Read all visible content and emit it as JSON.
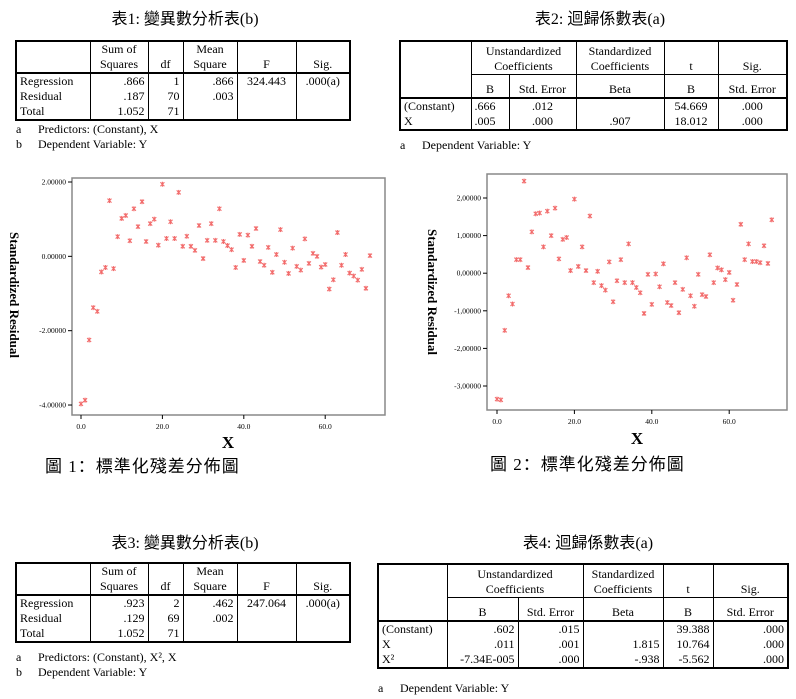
{
  "table1": {
    "title": "表1:  變異數分析表(b)",
    "headers": [
      "",
      "Sum of\nSquares",
      "df",
      "Mean\nSquare",
      "F",
      "Sig."
    ],
    "rows": [
      [
        "Regression",
        ".866",
        "1",
        ".866",
        "324.443",
        ".000(a)"
      ],
      [
        "Residual",
        ".187",
        "70",
        ".003",
        "",
        ""
      ],
      [
        "Total",
        "1.052",
        "71",
        "",
        "",
        ""
      ]
    ],
    "notes": [
      [
        "a",
        "Predictors: (Constant), X"
      ],
      [
        "b",
        "Dependent Variable: Y"
      ]
    ]
  },
  "table2": {
    "title": "表2:  迴歸係數表(a)",
    "group_headers": [
      "Unstandardized\nCoefficients",
      "Standardized\nCoefficients",
      "t",
      "Sig."
    ],
    "sub_headers": [
      "B",
      "Std. Error",
      "Beta",
      "B",
      "Std. Error"
    ],
    "rows": [
      [
        "(Constant)",
        ".666",
        ".012",
        "",
        "54.669",
        ".000"
      ],
      [
        "X",
        ".005",
        ".000",
        ".907",
        "18.012",
        ".000"
      ]
    ],
    "notes": [
      [
        "a",
        "Dependent Variable: Y"
      ]
    ]
  },
  "table3": {
    "title": "表3:  變異數分析表(b)",
    "headers": [
      "",
      "Sum of\nSquares",
      "df",
      "Mean\nSquare",
      "F",
      "Sig."
    ],
    "rows": [
      [
        "Regression",
        ".923",
        "2",
        ".462",
        "247.064",
        ".000(a)"
      ],
      [
        "Residual",
        ".129",
        "69",
        ".002",
        "",
        ""
      ],
      [
        "Total",
        "1.052",
        "71",
        "",
        "",
        ""
      ]
    ],
    "notes": [
      [
        "a",
        "Predictors: (Constant), X², X"
      ],
      [
        "b",
        "Dependent Variable: Y"
      ]
    ]
  },
  "table4": {
    "title": "表4:  迴歸係數表(a)",
    "group_headers": [
      "Unstandardized\nCoefficients",
      "Standardized\nCoefficients",
      "t",
      "Sig."
    ],
    "sub_headers": [
      "B",
      "Std. Error",
      "Beta",
      "B",
      "Std. Error"
    ],
    "rows": [
      [
        "(Constant)",
        ".602",
        ".015",
        "",
        "39.388",
        ".000"
      ],
      [
        "X",
        ".011",
        ".001",
        "1.815",
        "10.764",
        ".000"
      ],
      [
        "X²",
        "-7.34E-005",
        ".000",
        "-.938",
        "-5.562",
        ".000"
      ]
    ],
    "notes": [
      [
        "a",
        "Dependent Variable: Y"
      ]
    ]
  },
  "chart_data": [
    {
      "type": "scatter",
      "caption": "圖 1：標準化殘差分佈圖",
      "xlabel": "X",
      "ylabel": "Standardized Residual",
      "xlim": [
        -2,
        72
      ],
      "ylim": [
        -4.1,
        2.1
      ],
      "xticks": [
        0,
        20,
        40,
        60
      ],
      "xtick_labels": [
        "0.0",
        "20.0",
        "40.0",
        "60.0"
      ],
      "yticks": [
        2,
        0,
        -2,
        -4
      ],
      "ytick_labels": [
        "2.00000",
        "0.00000",
        "-2.00000",
        "-4.00000"
      ],
      "grid": false,
      "marker_color": "#f26b6b",
      "x": [
        0,
        1,
        2,
        3,
        4,
        5,
        6,
        7,
        8,
        9,
        10,
        11,
        12,
        13,
        14,
        15,
        16,
        17,
        18,
        19,
        20,
        21,
        22,
        23,
        24,
        25,
        26,
        27,
        28,
        29,
        30,
        31,
        32,
        33,
        34,
        35,
        36,
        37,
        38,
        39,
        40,
        41,
        42,
        43,
        44,
        45,
        46,
        47,
        48,
        49,
        50,
        51,
        52,
        53,
        54,
        55,
        56,
        57,
        58,
        59,
        60,
        61,
        62,
        63,
        64,
        65,
        66,
        67,
        68,
        69,
        70,
        71
      ],
      "y": [
        -3.97,
        -3.87,
        -2.25,
        -1.38,
        -1.48,
        -0.42,
        -0.3,
        1.5,
        -0.33,
        0.53,
        1.02,
        1.1,
        0.42,
        1.28,
        0.8,
        1.47,
        0.4,
        0.88,
        1.0,
        0.3,
        1.94,
        0.48,
        0.93,
        0.48,
        1.72,
        0.27,
        0.54,
        0.27,
        0.16,
        0.83,
        -0.06,
        0.43,
        0.88,
        0.43,
        1.28,
        0.4,
        0.29,
        0.18,
        -0.3,
        0.59,
        -0.11,
        0.57,
        0.27,
        0.75,
        -0.14,
        -0.24,
        0.24,
        -0.43,
        0.05,
        0.72,
        -0.16,
        -0.46,
        0.22,
        -0.27,
        -0.37,
        0.47,
        -0.19,
        0.08,
        0.0,
        -0.29,
        -0.22,
        -0.88,
        -0.63,
        0.64,
        -0.24,
        0.05,
        -0.45,
        -0.53,
        -0.64,
        -0.35,
        -0.86,
        0.02
      ]
    },
    {
      "type": "scatter",
      "caption": "圖 2：標準化殘差分佈圖",
      "xlabel": "X",
      "ylabel": "Standardized Residual",
      "xlim": [
        -2,
        72
      ],
      "ylim": [
        -3.6,
        2.6
      ],
      "xticks": [
        0,
        20,
        40,
        60
      ],
      "xtick_labels": [
        "0.0",
        "20.0",
        "40.0",
        "60.0"
      ],
      "yticks": [
        2,
        1,
        0,
        -1,
        -2,
        -3
      ],
      "ytick_labels": [
        "2,00000",
        "1,00000",
        "0,00000",
        "-1,00000",
        "-2,00000",
        "-3,00000"
      ],
      "grid": false,
      "marker_color": "#f26b6b",
      "x": [
        0,
        1,
        2,
        3,
        4,
        5,
        6,
        7,
        8,
        9,
        10,
        11,
        12,
        13,
        14,
        15,
        16,
        17,
        18,
        19,
        20,
        21,
        22,
        23,
        24,
        25,
        26,
        27,
        28,
        29,
        30,
        31,
        32,
        33,
        34,
        35,
        36,
        37,
        38,
        39,
        40,
        41,
        42,
        43,
        44,
        45,
        46,
        47,
        48,
        49,
        50,
        51,
        52,
        53,
        54,
        55,
        56,
        57,
        58,
        59,
        60,
        61,
        62,
        63,
        64,
        65,
        66,
        67,
        68,
        69,
        70,
        71
      ],
      "y": [
        -3.35,
        -3.37,
        -1.52,
        -0.6,
        -0.82,
        0.36,
        0.36,
        2.45,
        0.15,
        1.1,
        1.58,
        1.6,
        0.7,
        1.65,
        1.0,
        1.73,
        0.38,
        0.9,
        0.95,
        0.07,
        1.97,
        0.18,
        0.7,
        0.07,
        1.52,
        -0.25,
        0.05,
        -0.33,
        -0.45,
        0.3,
        -0.76,
        -0.2,
        0.36,
        -0.25,
        0.78,
        -0.25,
        -0.38,
        -0.52,
        -1.07,
        -0.03,
        -0.83,
        -0.02,
        -0.36,
        0.25,
        -0.78,
        -0.86,
        -0.25,
        -1.05,
        -0.43,
        0.41,
        -0.6,
        -0.88,
        -0.03,
        -0.57,
        -0.62,
        0.49,
        -0.25,
        0.14,
        0.09,
        -0.17,
        0.02,
        -0.72,
        -0.3,
        1.3,
        0.36,
        0.78,
        0.31,
        0.31,
        0.28,
        0.73,
        0.26,
        1.42
      ]
    }
  ]
}
